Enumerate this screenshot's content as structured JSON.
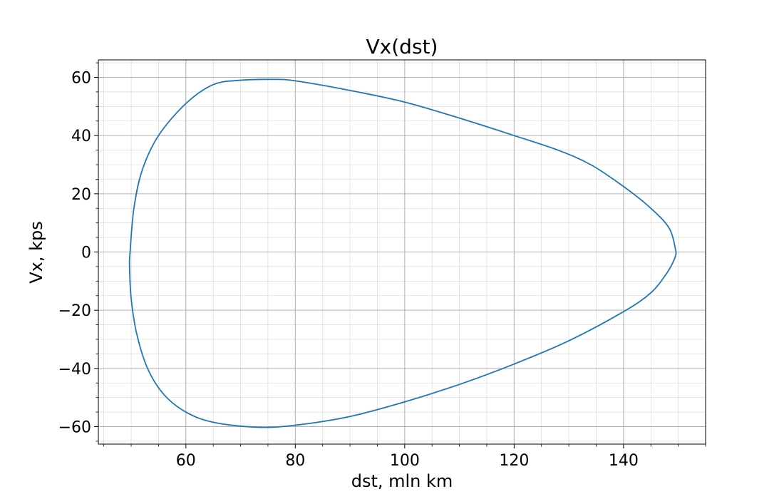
{
  "chart_data": {
    "type": "line",
    "title": "Vx(dst)",
    "xlabel": "dst, mln km",
    "ylabel": "Vx, kps",
    "xlim": [
      44,
      155
    ],
    "ylim": [
      -66,
      66
    ],
    "xticks": [
      60,
      80,
      100,
      120,
      140
    ],
    "yticks": [
      -60,
      -40,
      -20,
      0,
      20,
      40,
      60
    ],
    "xtick_labels": [
      "60",
      "80",
      "100",
      "120",
      "140"
    ],
    "ytick_labels": [
      "−60",
      "−40",
      "−20",
      "0",
      "20",
      "40",
      "60"
    ],
    "grid": true,
    "minor_grid": true,
    "series": [
      {
        "color": "#1f77b4",
        "x": [
          149.6,
          148.4,
          145.0,
          140.0,
          134.0,
          128.0,
          120.0,
          110.0,
          100.0,
          90.0,
          80.0,
          76.0,
          70.0,
          65.0,
          60.0,
          55.0,
          52.0,
          50.5,
          49.8,
          49.7,
          50.0,
          51.0,
          53.0,
          56.0,
          60.0,
          65.0,
          73.0,
          80.0,
          90.0,
          100.0,
          110.0,
          120.0,
          130.0,
          140.0,
          145.0,
          148.0,
          149.4,
          149.6
        ],
        "y": [
          0.0,
          8.0,
          15.0,
          22.5,
          30.0,
          35.0,
          40.0,
          46.0,
          51.5,
          55.5,
          58.8,
          59.3,
          59.0,
          57.5,
          51.0,
          40.0,
          28.0,
          15.0,
          0.0,
          -5.0,
          -16.0,
          -28.0,
          -40.0,
          -49.0,
          -55.0,
          -58.5,
          -60.2,
          -59.5,
          -56.5,
          -51.5,
          -45.5,
          -38.5,
          -30.5,
          -20.5,
          -14.0,
          -7.0,
          -2.0,
          0.0
        ]
      }
    ]
  }
}
